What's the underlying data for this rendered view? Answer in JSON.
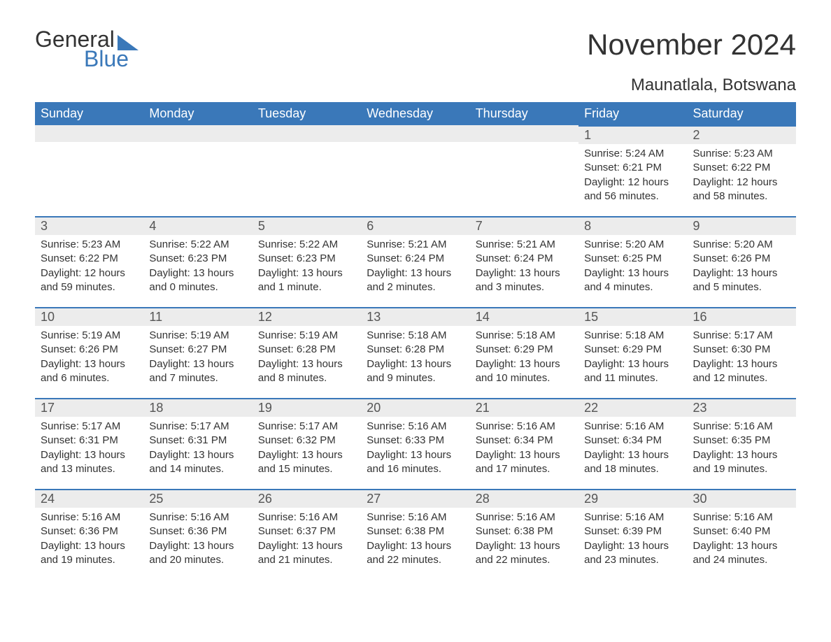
{
  "logo": {
    "general": "General",
    "blue": "Blue",
    "tri_color": "#3a78b9"
  },
  "title": "November 2024",
  "location": "Maunatlala, Botswana",
  "colors": {
    "header_bg": "#3a78b9",
    "header_text": "#ffffff",
    "daybar_bg": "#ececec",
    "daybar_border": "#3a78b9",
    "body_text": "#333333",
    "page_bg": "#ffffff"
  },
  "typography": {
    "title_fontsize": 42,
    "location_fontsize": 24,
    "header_fontsize": 18,
    "daynum_fontsize": 18,
    "body_fontsize": 15
  },
  "day_headers": [
    "Sunday",
    "Monday",
    "Tuesday",
    "Wednesday",
    "Thursday",
    "Friday",
    "Saturday"
  ],
  "weeks": [
    [
      null,
      null,
      null,
      null,
      null,
      {
        "num": "1",
        "sunrise": "Sunrise: 5:24 AM",
        "sunset": "Sunset: 6:21 PM",
        "daylight": "Daylight: 12 hours and 56 minutes."
      },
      {
        "num": "2",
        "sunrise": "Sunrise: 5:23 AM",
        "sunset": "Sunset: 6:22 PM",
        "daylight": "Daylight: 12 hours and 58 minutes."
      }
    ],
    [
      {
        "num": "3",
        "sunrise": "Sunrise: 5:23 AM",
        "sunset": "Sunset: 6:22 PM",
        "daylight": "Daylight: 12 hours and 59 minutes."
      },
      {
        "num": "4",
        "sunrise": "Sunrise: 5:22 AM",
        "sunset": "Sunset: 6:23 PM",
        "daylight": "Daylight: 13 hours and 0 minutes."
      },
      {
        "num": "5",
        "sunrise": "Sunrise: 5:22 AM",
        "sunset": "Sunset: 6:23 PM",
        "daylight": "Daylight: 13 hours and 1 minute."
      },
      {
        "num": "6",
        "sunrise": "Sunrise: 5:21 AM",
        "sunset": "Sunset: 6:24 PM",
        "daylight": "Daylight: 13 hours and 2 minutes."
      },
      {
        "num": "7",
        "sunrise": "Sunrise: 5:21 AM",
        "sunset": "Sunset: 6:24 PM",
        "daylight": "Daylight: 13 hours and 3 minutes."
      },
      {
        "num": "8",
        "sunrise": "Sunrise: 5:20 AM",
        "sunset": "Sunset: 6:25 PM",
        "daylight": "Daylight: 13 hours and 4 minutes."
      },
      {
        "num": "9",
        "sunrise": "Sunrise: 5:20 AM",
        "sunset": "Sunset: 6:26 PM",
        "daylight": "Daylight: 13 hours and 5 minutes."
      }
    ],
    [
      {
        "num": "10",
        "sunrise": "Sunrise: 5:19 AM",
        "sunset": "Sunset: 6:26 PM",
        "daylight": "Daylight: 13 hours and 6 minutes."
      },
      {
        "num": "11",
        "sunrise": "Sunrise: 5:19 AM",
        "sunset": "Sunset: 6:27 PM",
        "daylight": "Daylight: 13 hours and 7 minutes."
      },
      {
        "num": "12",
        "sunrise": "Sunrise: 5:19 AM",
        "sunset": "Sunset: 6:28 PM",
        "daylight": "Daylight: 13 hours and 8 minutes."
      },
      {
        "num": "13",
        "sunrise": "Sunrise: 5:18 AM",
        "sunset": "Sunset: 6:28 PM",
        "daylight": "Daylight: 13 hours and 9 minutes."
      },
      {
        "num": "14",
        "sunrise": "Sunrise: 5:18 AM",
        "sunset": "Sunset: 6:29 PM",
        "daylight": "Daylight: 13 hours and 10 minutes."
      },
      {
        "num": "15",
        "sunrise": "Sunrise: 5:18 AM",
        "sunset": "Sunset: 6:29 PM",
        "daylight": "Daylight: 13 hours and 11 minutes."
      },
      {
        "num": "16",
        "sunrise": "Sunrise: 5:17 AM",
        "sunset": "Sunset: 6:30 PM",
        "daylight": "Daylight: 13 hours and 12 minutes."
      }
    ],
    [
      {
        "num": "17",
        "sunrise": "Sunrise: 5:17 AM",
        "sunset": "Sunset: 6:31 PM",
        "daylight": "Daylight: 13 hours and 13 minutes."
      },
      {
        "num": "18",
        "sunrise": "Sunrise: 5:17 AM",
        "sunset": "Sunset: 6:31 PM",
        "daylight": "Daylight: 13 hours and 14 minutes."
      },
      {
        "num": "19",
        "sunrise": "Sunrise: 5:17 AM",
        "sunset": "Sunset: 6:32 PM",
        "daylight": "Daylight: 13 hours and 15 minutes."
      },
      {
        "num": "20",
        "sunrise": "Sunrise: 5:16 AM",
        "sunset": "Sunset: 6:33 PM",
        "daylight": "Daylight: 13 hours and 16 minutes."
      },
      {
        "num": "21",
        "sunrise": "Sunrise: 5:16 AM",
        "sunset": "Sunset: 6:34 PM",
        "daylight": "Daylight: 13 hours and 17 minutes."
      },
      {
        "num": "22",
        "sunrise": "Sunrise: 5:16 AM",
        "sunset": "Sunset: 6:34 PM",
        "daylight": "Daylight: 13 hours and 18 minutes."
      },
      {
        "num": "23",
        "sunrise": "Sunrise: 5:16 AM",
        "sunset": "Sunset: 6:35 PM",
        "daylight": "Daylight: 13 hours and 19 minutes."
      }
    ],
    [
      {
        "num": "24",
        "sunrise": "Sunrise: 5:16 AM",
        "sunset": "Sunset: 6:36 PM",
        "daylight": "Daylight: 13 hours and 19 minutes."
      },
      {
        "num": "25",
        "sunrise": "Sunrise: 5:16 AM",
        "sunset": "Sunset: 6:36 PM",
        "daylight": "Daylight: 13 hours and 20 minutes."
      },
      {
        "num": "26",
        "sunrise": "Sunrise: 5:16 AM",
        "sunset": "Sunset: 6:37 PM",
        "daylight": "Daylight: 13 hours and 21 minutes."
      },
      {
        "num": "27",
        "sunrise": "Sunrise: 5:16 AM",
        "sunset": "Sunset: 6:38 PM",
        "daylight": "Daylight: 13 hours and 22 minutes."
      },
      {
        "num": "28",
        "sunrise": "Sunrise: 5:16 AM",
        "sunset": "Sunset: 6:38 PM",
        "daylight": "Daylight: 13 hours and 22 minutes."
      },
      {
        "num": "29",
        "sunrise": "Sunrise: 5:16 AM",
        "sunset": "Sunset: 6:39 PM",
        "daylight": "Daylight: 13 hours and 23 minutes."
      },
      {
        "num": "30",
        "sunrise": "Sunrise: 5:16 AM",
        "sunset": "Sunset: 6:40 PM",
        "daylight": "Daylight: 13 hours and 24 minutes."
      }
    ]
  ]
}
